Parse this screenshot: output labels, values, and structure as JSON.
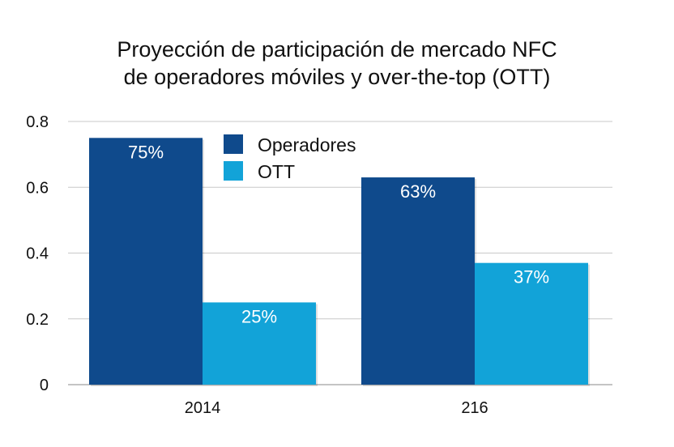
{
  "chart_data": {
    "type": "bar",
    "title_lines": [
      "Proyección de participación de mercado NFC",
      "de operadores móviles y over-the-top (OTT)"
    ],
    "categories": [
      "2014",
      "216"
    ],
    "series": [
      {
        "name": "Operadores",
        "values": [
          0.75,
          0.63
        ],
        "labels": [
          "75%",
          "63%"
        ],
        "color": "#0f4a8c"
      },
      {
        "name": "OTT",
        "values": [
          0.25,
          0.37
        ],
        "labels": [
          "25%",
          "37%"
        ],
        "color": "#12a3d8"
      }
    ],
    "yticks": [
      "0",
      "0.2",
      "0.4",
      "0.6",
      "0.8"
    ],
    "ylim": [
      0,
      0.8
    ],
    "grid": true,
    "legend_position": "top-center"
  }
}
